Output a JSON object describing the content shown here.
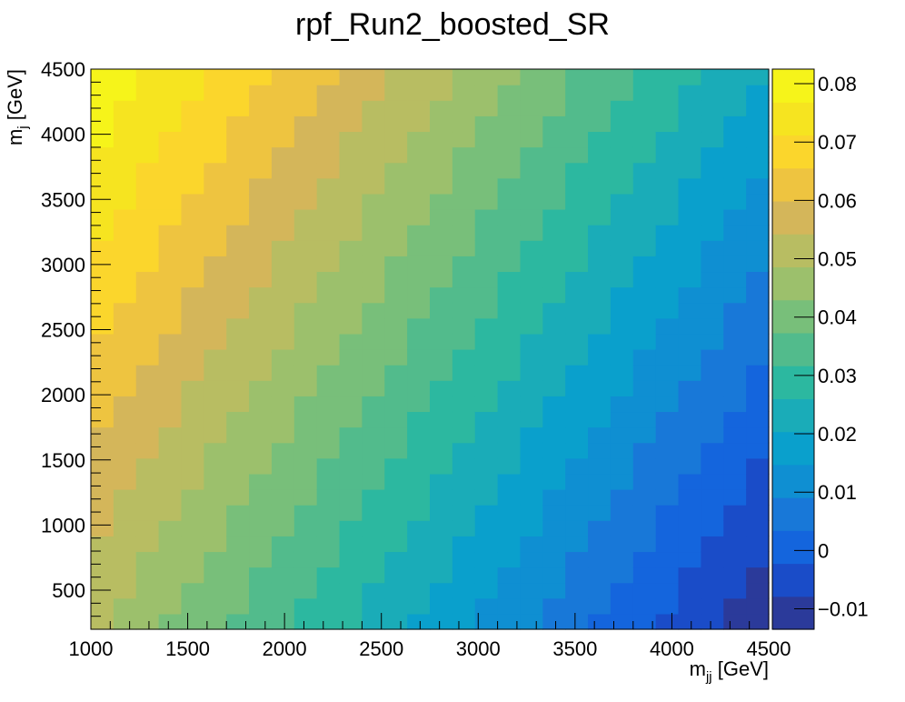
{
  "chart_data": {
    "type": "heatmap",
    "title": "rpf_Run2_boosted_SR",
    "xlabel": {
      "main": "m",
      "sub": "jj",
      "unit": " [GeV]"
    },
    "ylabel": {
      "main": "m",
      "sub": "j",
      "unit": " [GeV]"
    },
    "xlim": [
      1000,
      4500
    ],
    "ylim": [
      200,
      4500
    ],
    "x_ticks": [
      "1000",
      "1500",
      "2000",
      "2500",
      "3000",
      "3500",
      "4000",
      "4500"
    ],
    "y_ticks": [
      "500",
      "1000",
      "1500",
      "2000",
      "2500",
      "3000",
      "3500",
      "4000",
      "4500"
    ],
    "z_range": [
      -0.0135,
      0.0825
    ],
    "z_ticks": [
      "0.08",
      "0.07",
      "0.06",
      "0.05",
      "0.04",
      "0.03",
      "0.02",
      "0.01",
      "0",
      "−0.01"
    ],
    "nbins_x": 30,
    "nbins_y": 36,
    "z_model": {
      "description": "approximate smooth ratio surface read from the color map; z = z0 + ax*(x-1000) + ay*(y-200)",
      "z0": 0.0495,
      "ax": -1.78e-05,
      "ay": 7.6e-06
    },
    "palette": [
      "#2b3a9a",
      "#1a4cc8",
      "#1465dd",
      "#1878d8",
      "#0f8fd2",
      "#0aa0cc",
      "#1aacb8",
      "#2cb8a0",
      "#52bb8c",
      "#78bf7a",
      "#9cc06c",
      "#b8bd62",
      "#d4b65a",
      "#eec440",
      "#fbd62c",
      "#f6e420",
      "#f6f41a"
    ],
    "grid": false,
    "legend": "color bar on the right"
  }
}
